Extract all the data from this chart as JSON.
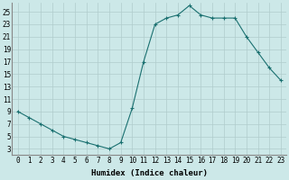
{
  "x": [
    0,
    1,
    2,
    3,
    4,
    5,
    6,
    7,
    8,
    9,
    10,
    11,
    12,
    13,
    14,
    15,
    16,
    17,
    18,
    19,
    20,
    21,
    22,
    23
  ],
  "y": [
    9,
    8,
    7,
    6,
    5,
    4.5,
    4,
    3.5,
    3,
    4,
    9.5,
    17,
    23,
    24,
    24.5,
    26,
    24.5,
    24,
    24,
    24,
    21,
    18.5,
    16,
    14
  ],
  "line_color": "#1a7070",
  "marker": "+",
  "marker_size": 3,
  "marker_linewidth": 0.8,
  "line_width": 0.8,
  "bg_color": "#cce8e8",
  "grid_major_color": "#b0cccc",
  "grid_minor_color": "#c0dada",
  "xlabel": "Humidex (Indice chaleur)",
  "xlim": [
    -0.5,
    23.5
  ],
  "ylim": [
    2,
    26.5
  ],
  "yticks": [
    3,
    5,
    7,
    9,
    11,
    13,
    15,
    17,
    19,
    21,
    23,
    25
  ],
  "xticks": [
    0,
    1,
    2,
    3,
    4,
    5,
    6,
    7,
    8,
    9,
    10,
    11,
    12,
    13,
    14,
    15,
    16,
    17,
    18,
    19,
    20,
    21,
    22,
    23
  ],
  "tick_fontsize": 5.5,
  "xlabel_fontsize": 6.5
}
